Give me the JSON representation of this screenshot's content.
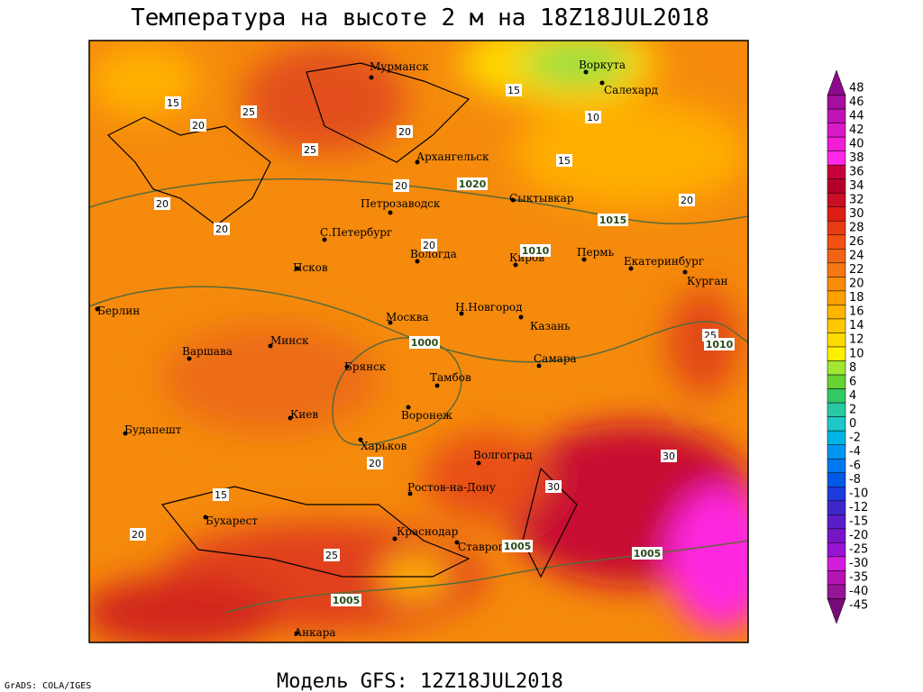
{
  "header": {
    "title": "Температура на высоте 2 м на 18Z18JUL2018"
  },
  "footer": {
    "model": "Модель GFS: 12Z18JUL2018",
    "credit": "GrADS: COLA/IGES"
  },
  "cities": [
    "Мурманск",
    "Воркута",
    "Салехард",
    "Архангельск",
    "Сыктывкар",
    "Петрозаводск",
    "С.Петербург",
    "Вологда",
    "Киров",
    "Пермь",
    "Екатеринбург",
    "Курган",
    "Псков",
    "Берлин",
    "Н.Новгород",
    "Москва",
    "Казань",
    "Варшава",
    "Минск",
    "Брянск",
    "Самара",
    "Тамбов",
    "Воронеж",
    "Киев",
    "Будапешт",
    "Харьков",
    "Волгоград",
    "Ростов-на-Дону",
    "Бухарест",
    "Краснодар",
    "Ставрополь",
    "Анкара"
  ],
  "contour_labels": [
    "15",
    "25",
    "20",
    "20",
    "15",
    "10",
    "15",
    "20",
    "20",
    "20",
    "20",
    "25",
    "20",
    "25",
    "30",
    "30",
    "15",
    "20",
    "25",
    "20"
  ],
  "isobar_labels": [
    "1020",
    "1015",
    "1010",
    "1000",
    "1010",
    "1005",
    "1005",
    "1005"
  ],
  "colorbar": {
    "labels": [
      "48",
      "46",
      "44",
      "42",
      "40",
      "38",
      "36",
      "34",
      "32",
      "30",
      "28",
      "26",
      "24",
      "22",
      "20",
      "18",
      "16",
      "14",
      "12",
      "10",
      "8",
      "6",
      "4",
      "2",
      "0",
      "-2",
      "-4",
      "-6",
      "-8",
      "-10",
      "-12",
      "-15",
      "-20",
      "-25",
      "-30",
      "-35",
      "-40",
      "-45"
    ],
    "colors": [
      "#8c0a8c",
      "#a50fa0",
      "#be14b4",
      "#d719c8",
      "#f01ed7",
      "#ff28e6",
      "#c8003c",
      "#b40028",
      "#c80f23",
      "#dc1e14",
      "#e63c14",
      "#f05014",
      "#f06414",
      "#f57814",
      "#fa8c0a",
      "#ffa000",
      "#ffb400",
      "#ffc800",
      "#ffdc00",
      "#fff000",
      "#a0e632",
      "#64d232",
      "#32c864",
      "#28c8a0",
      "#1ec8c8",
      "#00b4e6",
      "#0096f0",
      "#0078f0",
      "#005ae6",
      "#1e3cdc",
      "#3c28c8",
      "#5a1ec8",
      "#7814c8",
      "#9614d2",
      "#d21edc",
      "#b414b4",
      "#961496",
      "#780a78"
    ]
  }
}
